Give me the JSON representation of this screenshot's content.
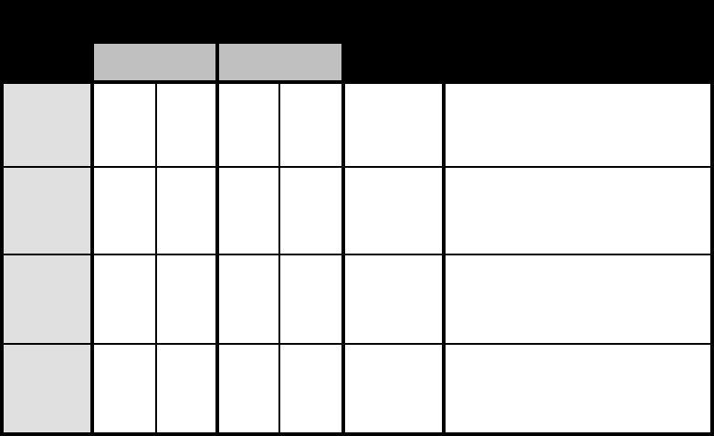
{
  "colors": {
    "background": "#000000",
    "group_header": "#c0c0c0",
    "row_header": "#e0e0e0",
    "cell": "#ffffff"
  },
  "table": {
    "group_headers": 2,
    "rows": 4,
    "data_columns": 6
  }
}
